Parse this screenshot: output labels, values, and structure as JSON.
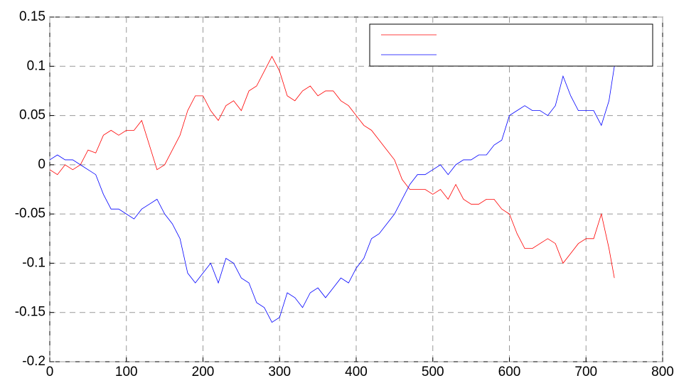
{
  "chart_data": {
    "type": "line",
    "x": [
      0,
      10,
      20,
      30,
      40,
      50,
      60,
      70,
      80,
      90,
      100,
      110,
      120,
      130,
      140,
      150,
      160,
      170,
      180,
      190,
      200,
      210,
      220,
      230,
      240,
      250,
      260,
      270,
      280,
      290,
      300,
      310,
      320,
      330,
      340,
      350,
      360,
      370,
      380,
      390,
      400,
      410,
      420,
      430,
      440,
      450,
      460,
      470,
      480,
      490,
      500,
      510,
      520,
      530,
      540,
      550,
      560,
      570,
      580,
      590,
      600,
      610,
      620,
      630,
      640,
      650,
      660,
      670,
      680,
      690,
      700,
      710,
      720,
      730,
      737
    ],
    "series": [
      {
        "color": "#ff0000",
        "values": [
          -0.005,
          -0.01,
          0.0,
          -0.005,
          0.0,
          0.015,
          0.012,
          0.03,
          0.035,
          0.03,
          0.035,
          0.035,
          0.045,
          0.02,
          -0.005,
          0.0,
          0.015,
          0.03,
          0.055,
          0.07,
          0.07,
          0.055,
          0.045,
          0.06,
          0.065,
          0.055,
          0.075,
          0.08,
          0.095,
          0.11,
          0.095,
          0.07,
          0.065,
          0.075,
          0.08,
          0.07,
          0.075,
          0.075,
          0.065,
          0.06,
          0.05,
          0.04,
          0.035,
          0.025,
          0.015,
          0.005,
          -0.015,
          -0.025,
          -0.025,
          -0.025,
          -0.03,
          -0.025,
          -0.035,
          -0.02,
          -0.035,
          -0.04,
          -0.04,
          -0.035,
          -0.035,
          -0.045,
          -0.05,
          -0.07,
          -0.085,
          -0.085,
          -0.08,
          -0.075,
          -0.08,
          -0.1,
          -0.09,
          -0.08,
          -0.075,
          -0.075,
          -0.05,
          -0.085,
          -0.115
        ]
      },
      {
        "color": "#0000ff",
        "values": [
          0.005,
          0.01,
          0.005,
          0.005,
          0.0,
          -0.005,
          -0.01,
          -0.03,
          -0.045,
          -0.045,
          -0.05,
          -0.055,
          -0.045,
          -0.04,
          -0.035,
          -0.05,
          -0.06,
          -0.075,
          -0.11,
          -0.12,
          -0.11,
          -0.1,
          -0.12,
          -0.095,
          -0.1,
          -0.115,
          -0.12,
          -0.14,
          -0.145,
          -0.16,
          -0.155,
          -0.13,
          -0.135,
          -0.145,
          -0.13,
          -0.125,
          -0.135,
          -0.125,
          -0.115,
          -0.12,
          -0.105,
          -0.095,
          -0.075,
          -0.07,
          -0.06,
          -0.05,
          -0.035,
          -0.02,
          -0.01,
          -0.01,
          -0.005,
          0.0,
          -0.01,
          0.0,
          0.005,
          0.005,
          0.01,
          0.01,
          0.02,
          0.025,
          0.05,
          0.055,
          0.06,
          0.055,
          0.055,
          0.05,
          0.06,
          0.09,
          0.07,
          0.055,
          0.055,
          0.055,
          0.04,
          0.065,
          0.1
        ]
      }
    ],
    "xlim": [
      0,
      800
    ],
    "xticks": [
      0,
      100,
      200,
      300,
      400,
      500,
      600,
      700,
      800
    ],
    "ylim": [
      -0.2,
      0.15
    ],
    "yticks": [
      -0.2,
      -0.15,
      -0.1,
      -0.05,
      0,
      0.05,
      0.1,
      0.15
    ],
    "grid": true,
    "legend": "upper-right"
  }
}
